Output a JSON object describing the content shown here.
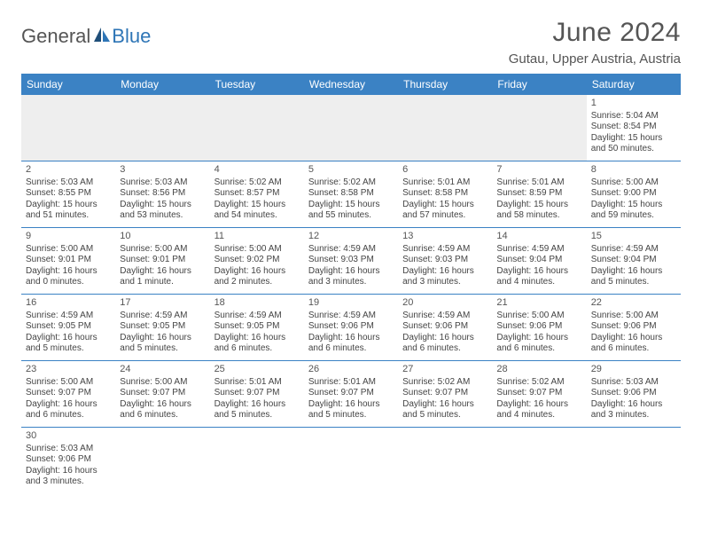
{
  "logo": {
    "text1": "General",
    "text2": "Blue"
  },
  "title": "June 2024",
  "location": "Gutau, Upper Austria, Austria",
  "weekdays": [
    "Sunday",
    "Monday",
    "Tuesday",
    "Wednesday",
    "Thursday",
    "Friday",
    "Saturday"
  ],
  "header_bg": "#3b82c4",
  "header_fg": "#ffffff",
  "border_color": "#3b82c4",
  "weeks": [
    [
      null,
      null,
      null,
      null,
      null,
      null,
      {
        "n": "1",
        "sr": "5:04 AM",
        "ss": "8:54 PM",
        "dl": "15 hours and 50 minutes."
      }
    ],
    [
      {
        "n": "2",
        "sr": "5:03 AM",
        "ss": "8:55 PM",
        "dl": "15 hours and 51 minutes."
      },
      {
        "n": "3",
        "sr": "5:03 AM",
        "ss": "8:56 PM",
        "dl": "15 hours and 53 minutes."
      },
      {
        "n": "4",
        "sr": "5:02 AM",
        "ss": "8:57 PM",
        "dl": "15 hours and 54 minutes."
      },
      {
        "n": "5",
        "sr": "5:02 AM",
        "ss": "8:58 PM",
        "dl": "15 hours and 55 minutes."
      },
      {
        "n": "6",
        "sr": "5:01 AM",
        "ss": "8:58 PM",
        "dl": "15 hours and 57 minutes."
      },
      {
        "n": "7",
        "sr": "5:01 AM",
        "ss": "8:59 PM",
        "dl": "15 hours and 58 minutes."
      },
      {
        "n": "8",
        "sr": "5:00 AM",
        "ss": "9:00 PM",
        "dl": "15 hours and 59 minutes."
      }
    ],
    [
      {
        "n": "9",
        "sr": "5:00 AM",
        "ss": "9:01 PM",
        "dl": "16 hours and 0 minutes."
      },
      {
        "n": "10",
        "sr": "5:00 AM",
        "ss": "9:01 PM",
        "dl": "16 hours and 1 minute."
      },
      {
        "n": "11",
        "sr": "5:00 AM",
        "ss": "9:02 PM",
        "dl": "16 hours and 2 minutes."
      },
      {
        "n": "12",
        "sr": "4:59 AM",
        "ss": "9:03 PM",
        "dl": "16 hours and 3 minutes."
      },
      {
        "n": "13",
        "sr": "4:59 AM",
        "ss": "9:03 PM",
        "dl": "16 hours and 3 minutes."
      },
      {
        "n": "14",
        "sr": "4:59 AM",
        "ss": "9:04 PM",
        "dl": "16 hours and 4 minutes."
      },
      {
        "n": "15",
        "sr": "4:59 AM",
        "ss": "9:04 PM",
        "dl": "16 hours and 5 minutes."
      }
    ],
    [
      {
        "n": "16",
        "sr": "4:59 AM",
        "ss": "9:05 PM",
        "dl": "16 hours and 5 minutes."
      },
      {
        "n": "17",
        "sr": "4:59 AM",
        "ss": "9:05 PM",
        "dl": "16 hours and 5 minutes."
      },
      {
        "n": "18",
        "sr": "4:59 AM",
        "ss": "9:05 PM",
        "dl": "16 hours and 6 minutes."
      },
      {
        "n": "19",
        "sr": "4:59 AM",
        "ss": "9:06 PM",
        "dl": "16 hours and 6 minutes."
      },
      {
        "n": "20",
        "sr": "4:59 AM",
        "ss": "9:06 PM",
        "dl": "16 hours and 6 minutes."
      },
      {
        "n": "21",
        "sr": "5:00 AM",
        "ss": "9:06 PM",
        "dl": "16 hours and 6 minutes."
      },
      {
        "n": "22",
        "sr": "5:00 AM",
        "ss": "9:06 PM",
        "dl": "16 hours and 6 minutes."
      }
    ],
    [
      {
        "n": "23",
        "sr": "5:00 AM",
        "ss": "9:07 PM",
        "dl": "16 hours and 6 minutes."
      },
      {
        "n": "24",
        "sr": "5:00 AM",
        "ss": "9:07 PM",
        "dl": "16 hours and 6 minutes."
      },
      {
        "n": "25",
        "sr": "5:01 AM",
        "ss": "9:07 PM",
        "dl": "16 hours and 5 minutes."
      },
      {
        "n": "26",
        "sr": "5:01 AM",
        "ss": "9:07 PM",
        "dl": "16 hours and 5 minutes."
      },
      {
        "n": "27",
        "sr": "5:02 AM",
        "ss": "9:07 PM",
        "dl": "16 hours and 5 minutes."
      },
      {
        "n": "28",
        "sr": "5:02 AM",
        "ss": "9:07 PM",
        "dl": "16 hours and 4 minutes."
      },
      {
        "n": "29",
        "sr": "5:03 AM",
        "ss": "9:06 PM",
        "dl": "16 hours and 3 minutes."
      }
    ],
    [
      {
        "n": "30",
        "sr": "5:03 AM",
        "ss": "9:06 PM",
        "dl": "16 hours and 3 minutes."
      },
      null,
      null,
      null,
      null,
      null,
      null
    ]
  ],
  "labels": {
    "sunrise": "Sunrise:",
    "sunset": "Sunset:",
    "daylight": "Daylight:"
  }
}
